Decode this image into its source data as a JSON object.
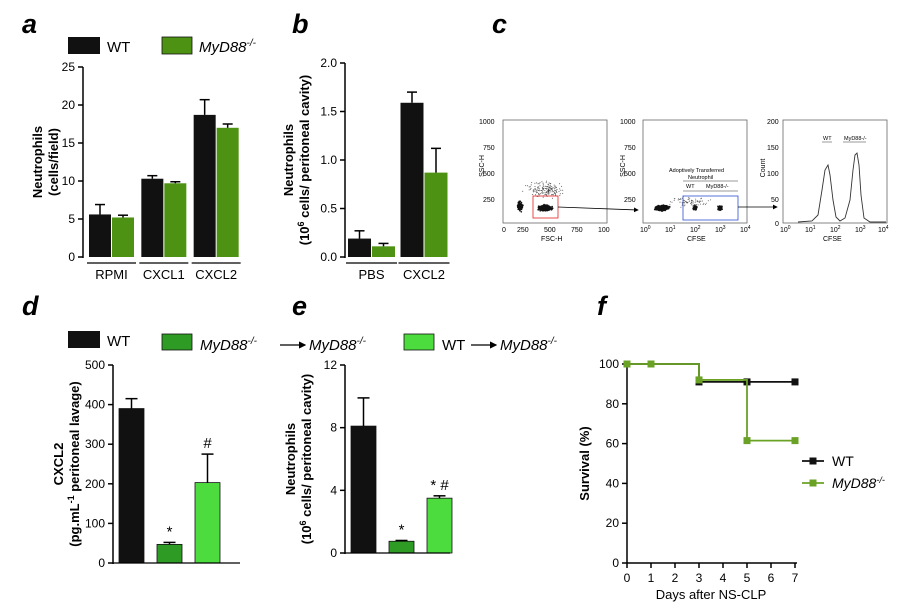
{
  "panels": {
    "a": "a",
    "b": "b",
    "c": "c",
    "d": "d",
    "e": "e",
    "f": "f"
  },
  "legend_top": {
    "wt": "WT",
    "myd88": "MyD88",
    "myd88_sup": "-/-"
  },
  "legend_bottom": {
    "wt": "WT",
    "ko_to_ko_left": "MyD88",
    "ko_to_ko_right": "MyD88",
    "wt_to_ko_left": "WT",
    "wt_to_ko_right": "MyD88",
    "sup": "-/-"
  },
  "colors": {
    "wt": "#111111",
    "myd88": "#4e9214",
    "ko_to_ko": "#2e9b25",
    "wt_to_ko": "#4cdc3e",
    "survival_myd88": "#6aa226"
  },
  "flow": {
    "p1": {
      "ylabel": "SSC-H",
      "xlabel": "FSC-H",
      "yticks": [
        "1000",
        "750",
        "500",
        "250"
      ],
      "xticks": [
        "0",
        "250",
        "500",
        "750",
        "100"
      ]
    },
    "p2": {
      "ylabel": "SSC-H",
      "xlabel": "CFSE",
      "yticks": [
        "1000",
        "750",
        "500",
        "250"
      ],
      "gate_title": [
        "Adoptively Transferred",
        "Neutrophil"
      ],
      "gate_wt": "WT",
      "gate_myd88": "MyD88-/-",
      "xtick_bases": [
        "10",
        "10",
        "10",
        "10",
        "10"
      ],
      "xtick_exps": [
        "0",
        "1",
        "2",
        "3",
        "4"
      ]
    },
    "p3": {
      "ylabel": "Count",
      "xlabel": "CFSE",
      "yticks": [
        "200",
        "150",
        "100",
        "50",
        "0"
      ],
      "peak_wt": "WT",
      "peak_myd88": "MyD88-/-",
      "xtick_bases": [
        "10",
        "10",
        "10",
        "10",
        "10"
      ],
      "xtick_exps": [
        "0",
        "1",
        "2",
        "3",
        "4"
      ]
    }
  },
  "chart_data": [
    {
      "panel": "a",
      "type": "bar",
      "ylabel_line1": "Neutrophils",
      "ylabel_line2": "(cells/field)",
      "categories": [
        "RPMI",
        "CXCL1",
        "CXCL2"
      ],
      "ylim": [
        0,
        25
      ],
      "yticks": [
        0,
        5,
        10,
        15,
        20,
        25
      ],
      "series": [
        {
          "name": "WT",
          "values": [
            5.6,
            10.3,
            18.7
          ],
          "errors": [
            1.3,
            0.4,
            2.0
          ]
        },
        {
          "name": "MyD88-/-",
          "values": [
            5.2,
            9.7,
            17.0
          ],
          "errors": [
            0.3,
            0.2,
            0.5
          ]
        }
      ]
    },
    {
      "panel": "b",
      "type": "bar",
      "ylabel_line1": "Neutrophils",
      "ylabel_line2": "(10",
      "ylabel_sup": "6",
      "ylabel_line2b": " cells/ peritoneal cavity)",
      "categories": [
        "PBS",
        "CXCL2"
      ],
      "ylim": [
        0,
        2.0
      ],
      "yticks": [
        "0.0",
        "0.5",
        "1.0",
        "1.5",
        "2.0"
      ],
      "series": [
        {
          "name": "WT",
          "values": [
            0.19,
            1.59
          ],
          "errors": [
            0.08,
            0.11
          ]
        },
        {
          "name": "MyD88-/-",
          "values": [
            0.11,
            0.87
          ],
          "errors": [
            0.03,
            0.25
          ]
        }
      ]
    },
    {
      "panel": "d",
      "type": "bar",
      "ylabel_line1": "CXCL2",
      "ylabel_line2": "(pg.mL",
      "ylabel_sup": "-1",
      "ylabel_line2b": " peritoneal lavage)",
      "categories": [
        "WT",
        "MyD88-/- → MyD88-/-",
        "WT → MyD88-/-"
      ],
      "ylim": [
        0,
        500
      ],
      "yticks": [
        0,
        100,
        200,
        300,
        400,
        500
      ],
      "values": [
        390,
        47,
        203
      ],
      "errors": [
        25,
        5,
        72
      ],
      "annotations": [
        "",
        "*",
        "#"
      ]
    },
    {
      "panel": "e",
      "type": "bar",
      "ylabel_line1": "Neutrophils",
      "ylabel_line2": "(10",
      "ylabel_sup": "6",
      "ylabel_line2b": " cells/ peritoneal cavity)",
      "categories": [
        "WT",
        "MyD88-/- → MyD88-/-",
        "WT → MyD88-/-"
      ],
      "ylim": [
        0,
        12
      ],
      "yticks": [
        0,
        4,
        8,
        12
      ],
      "values": [
        8.1,
        0.75,
        3.5
      ],
      "errors": [
        1.8,
        0.05,
        0.15
      ],
      "annotations": [
        "",
        "*",
        "* #"
      ]
    },
    {
      "panel": "f",
      "type": "line",
      "ylabel": "Survival (%)",
      "xlabel": "Days after NS-CLP",
      "xlim": [
        0,
        7
      ],
      "ylim": [
        0,
        100
      ],
      "xticks": [
        0,
        1,
        2,
        3,
        4,
        5,
        6,
        7
      ],
      "yticks": [
        0,
        20,
        40,
        60,
        80,
        100
      ],
      "series": [
        {
          "name": "WT",
          "x": [
            0,
            1,
            3,
            5,
            7
          ],
          "y": [
            100,
            100,
            91,
            91,
            91
          ]
        },
        {
          "name": "MyD88-/-",
          "x": [
            0,
            1,
            3,
            5,
            7
          ],
          "y": [
            100,
            100,
            92,
            61.5,
            61.5
          ]
        }
      ]
    }
  ]
}
